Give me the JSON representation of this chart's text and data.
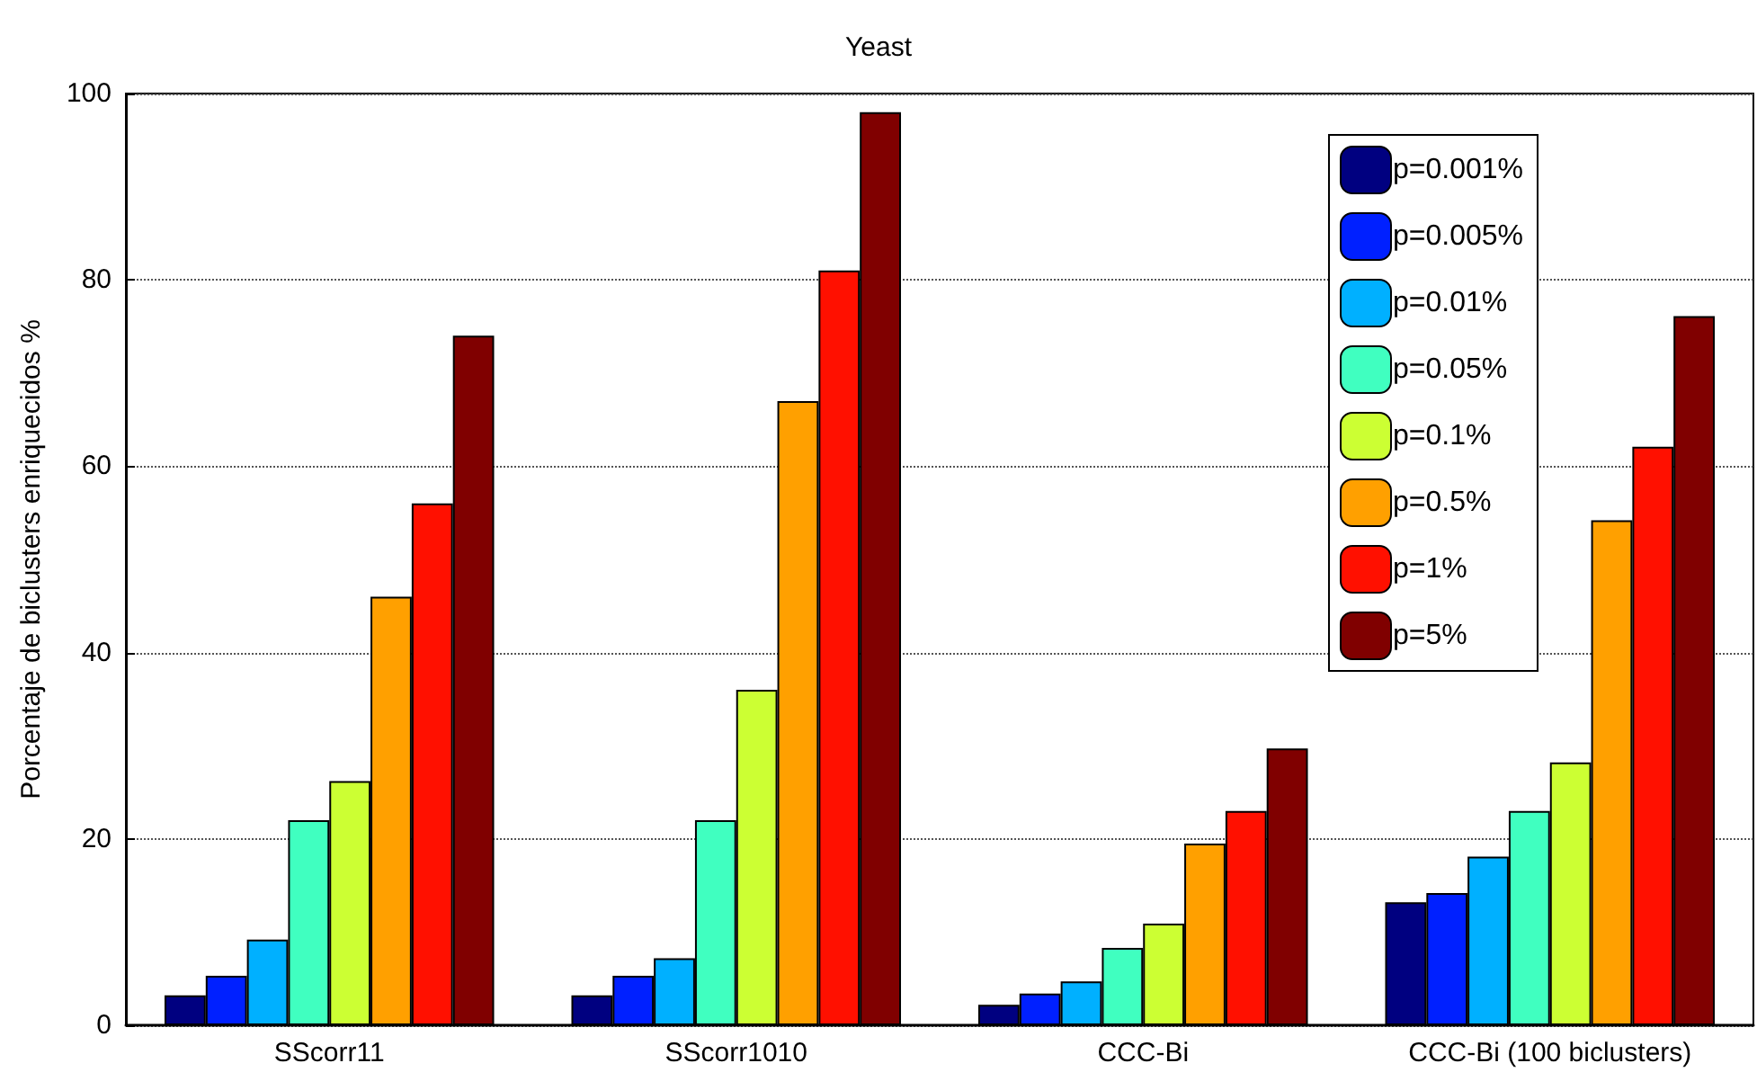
{
  "chart_data": {
    "type": "bar",
    "title": "Yeast",
    "ylabel": "Porcentaje de biclusters enriquecidos %",
    "categories": [
      "SScorr11",
      "SScorr1010",
      "CCC-Bi",
      "CCC-Bi (100 biclusters)"
    ],
    "series": [
      {
        "name": "p=0.001%",
        "color": "#000080",
        "values": [
          3.2,
          3.2,
          2.2,
          13.2
        ]
      },
      {
        "name": "p=0.005%",
        "color": "#0020ff",
        "values": [
          5.3,
          5.3,
          3.4,
          14.2
        ]
      },
      {
        "name": "p=0.01%",
        "color": "#00b0ff",
        "values": [
          9.2,
          7.2,
          4.7,
          18.1
        ]
      },
      {
        "name": "p=0.05%",
        "color": "#40ffc0",
        "values": [
          22,
          22,
          8.3,
          23
        ]
      },
      {
        "name": "p=0.1%",
        "color": "#ccff33",
        "values": [
          26.2,
          36,
          10.9,
          28.2
        ]
      },
      {
        "name": "p=0.5%",
        "color": "#ffa000",
        "values": [
          46,
          67,
          19.5,
          54.2
        ]
      },
      {
        "name": "p=1%",
        "color": "#ff1000",
        "values": [
          56,
          81,
          23,
          62.1
        ]
      },
      {
        "name": "p=5%",
        "color": "#800000",
        "values": [
          74,
          98,
          29.7,
          76.1
        ]
      }
    ],
    "ylim": [
      0,
      100
    ],
    "yticks": [
      0,
      20,
      40,
      60,
      80,
      100
    ],
    "grid": "y",
    "legend": "top right"
  }
}
